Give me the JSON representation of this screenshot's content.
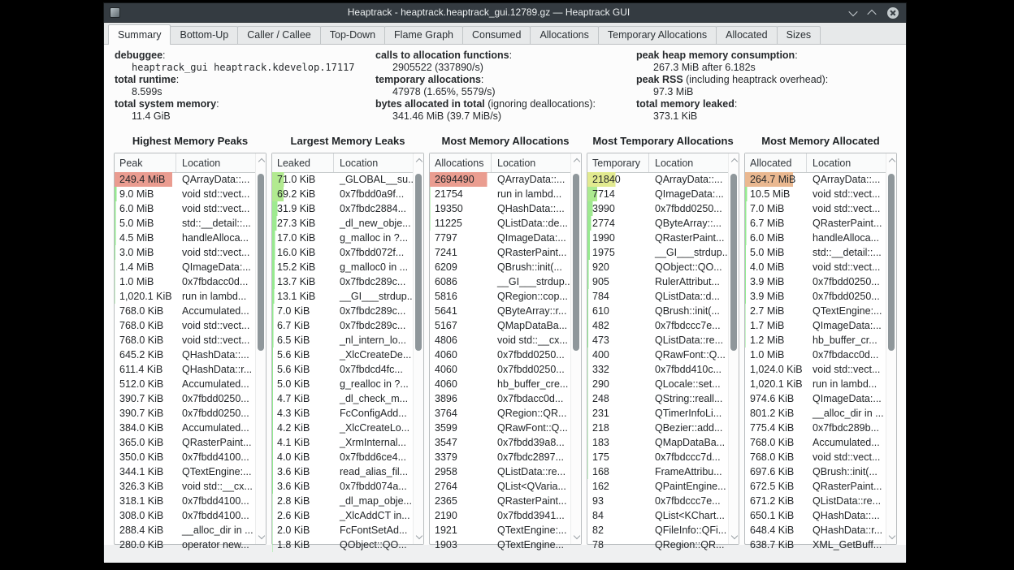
{
  "window": {
    "title": "Heaptrack - heaptrack.heaptrack_gui.12789.gz — Heaptrack GUI",
    "control_icons": [
      "chevron-down-icon",
      "chevron-up-icon",
      "close-circle-icon"
    ]
  },
  "active_tab": "Summary",
  "tabs": [
    "Summary",
    "Bottom-Up",
    "Caller / Callee",
    "Top-Down",
    "Flame Graph",
    "Consumed",
    "Allocations",
    "Temporary Allocations",
    "Allocated",
    "Sizes"
  ],
  "summary": {
    "columns": [
      [
        {
          "label": "debuggee",
          "rest": ":",
          "value": "heaptrack_gui heaptrack.kdevelop.17117",
          "mono": true
        },
        {
          "label": "total runtime",
          "rest": ":",
          "value": "8.599s"
        },
        {
          "label": "total system memory",
          "rest": ":",
          "value": "11.4 GiB"
        }
      ],
      [
        {
          "label": "calls to allocation functions",
          "rest": ":",
          "value": "2905522 (337890/s)"
        },
        {
          "label": "temporary allocations",
          "rest": ":",
          "value": "47978 (1.65%, 5579/s)"
        },
        {
          "label": "bytes allocated in total",
          "rest": " (ignoring deallocations):",
          "value": "341.46 MiB (39.7 MiB/s)"
        }
      ],
      [
        {
          "label": "peak heap memory consumption",
          "rest": ":",
          "value": "267.3 MiB after 6.182s"
        },
        {
          "label": "peak RSS",
          "rest": " (including heaptrack overhead):",
          "value": "97.3 MiB"
        },
        {
          "label": "total memory leaked",
          "rest": ":",
          "value": "373.1 KiB"
        }
      ]
    ]
  },
  "colors": {
    "peak_highlight": "#ea9e92",
    "allocations_highlight": "#ea9e92",
    "temporary_highlight": "#f1ef9e",
    "allocated_highlight": "#f5c289",
    "leak_highlight": "#ddf0d2",
    "titlebar": "#343b41"
  },
  "tables": [
    {
      "title": "Highest Memory Peaks",
      "name": "highest-memory-peaks",
      "columns": [
        "Peak",
        "Location"
      ],
      "rows": [
        [
          "249.4 MiB",
          "QArrayData::...",
          0.933
        ],
        [
          "9.0 MiB",
          "void std::vect...",
          0.034
        ],
        [
          "6.0 MiB",
          "void std::vect...",
          0.022
        ],
        [
          "5.0 MiB",
          "std::__detail::...",
          0.019
        ],
        [
          "4.5 MiB",
          "handleAlloca...",
          0.017
        ],
        [
          "3.0 MiB",
          "void std::vect...",
          0.011
        ],
        [
          "1.4 MiB",
          "QImageData:...",
          0.005
        ],
        [
          "1.0 MiB",
          "0x7fbdacc0d...",
          0.004
        ],
        [
          "1,020.1 KiB",
          "run in lambd...",
          0.004
        ],
        [
          "768.0 KiB",
          "Accumulated...",
          0.003
        ],
        [
          "768.0 KiB",
          "void std::vect...",
          0.003
        ],
        [
          "768.0 KiB",
          "void std::vect...",
          0.003
        ],
        [
          "645.2 KiB",
          "QHashData::...",
          0.002
        ],
        [
          "611.4 KiB",
          "QHashData::r...",
          0.002
        ],
        [
          "512.0 KiB",
          "Accumulated...",
          0.002
        ],
        [
          "390.7 KiB",
          "0x7fbdd0250...",
          0.001
        ],
        [
          "390.7 KiB",
          "0x7fbdd0250...",
          0.001
        ],
        [
          "384.0 KiB",
          "Accumulated...",
          0.001
        ],
        [
          "365.0 KiB",
          "QRasterPaint...",
          0.001
        ],
        [
          "350.0 KiB",
          "0x7fbdd4100...",
          0.001
        ],
        [
          "344.1 KiB",
          "QTextEngine:...",
          0.001
        ],
        [
          "326.3 KiB",
          "void std::__cx...",
          0.001
        ],
        [
          "318.1 KiB",
          "0x7fbdd4100...",
          0.001
        ],
        [
          "308.0 KiB",
          "0x7fbdd4100...",
          0.001
        ],
        [
          "288.4 KiB",
          "__alloc_dir in ...",
          0.001
        ],
        [
          "280.0 KiB",
          "operator new...",
          0.001
        ]
      ]
    },
    {
      "title": "Largest Memory Leaks",
      "name": "largest-memory-leaks",
      "columns": [
        "Leaked",
        "Location"
      ],
      "rows": [
        [
          "71.0 KiB",
          "_GLOBAL__su...",
          0.19
        ],
        [
          "69.2 KiB",
          "0x7fbdd0a9f...",
          0.185
        ],
        [
          "31.9 KiB",
          "0x7fbdc2884...",
          0.086
        ],
        [
          "27.3 KiB",
          "_dl_new_obje...",
          0.073
        ],
        [
          "17.0 KiB",
          "g_malloc in ?...",
          0.046
        ],
        [
          "16.0 KiB",
          "0x7fbdd072f...",
          0.043
        ],
        [
          "15.2 KiB",
          "g_malloc0 in ...",
          0.041
        ],
        [
          "13.7 KiB",
          "0x7fbdc289c...",
          0.037
        ],
        [
          "13.1 KiB",
          "__GI___strdup...",
          0.035
        ],
        [
          "7.0 KiB",
          "0x7fbdc289c...",
          0.019
        ],
        [
          "6.7 KiB",
          "0x7fbdc289c...",
          0.018
        ],
        [
          "6.5 KiB",
          "_nl_intern_lo...",
          0.017
        ],
        [
          "5.6 KiB",
          "_XlcCreateDe...",
          0.015
        ],
        [
          "5.6 KiB",
          "0x7fbdcd4fc...",
          0.015
        ],
        [
          "5.0 KiB",
          "g_realloc in ?...",
          0.013
        ],
        [
          "4.7 KiB",
          "_dl_check_m...",
          0.013
        ],
        [
          "4.3 KiB",
          "FcConfigAdd...",
          0.012
        ],
        [
          "4.2 KiB",
          "_XlcCreateLo...",
          0.011
        ],
        [
          "4.1 KiB",
          "_XrmInternal...",
          0.011
        ],
        [
          "4.0 KiB",
          "0x7fbdd6ce4...",
          0.011
        ],
        [
          "3.6 KiB",
          "read_alias_fil...",
          0.01
        ],
        [
          "3.6 KiB",
          "0x7fbdd074a...",
          0.01
        ],
        [
          "2.8 KiB",
          "_dl_map_obje...",
          0.008
        ],
        [
          "2.6 KiB",
          "_XlcAddCT in...",
          0.007
        ],
        [
          "2.0 KiB",
          "FcFontSetAd...",
          0.005
        ],
        [
          "1.8 KiB",
          "QObject::QO...",
          0.005
        ]
      ]
    },
    {
      "title": "Most Memory Allocations",
      "name": "most-memory-allocations",
      "columns": [
        "Allocations",
        "Location"
      ],
      "rows": [
        [
          "2694490",
          "QArrayData::...",
          0.927
        ],
        [
          "21754",
          "run in lambd...",
          0.007
        ],
        [
          "19350",
          "QHashData::...",
          0.007
        ],
        [
          "11225",
          "QListData::de...",
          0.004
        ],
        [
          "7797",
          "QImageData:...",
          0.003
        ],
        [
          "7241",
          "QRasterPaint...",
          0.002
        ],
        [
          "6209",
          "QBrush::init(...",
          0.002
        ],
        [
          "6086",
          "__GI___strdup...",
          0.002
        ],
        [
          "5816",
          "QRegion::cop...",
          0.002
        ],
        [
          "5641",
          "QByteArray::r...",
          0.002
        ],
        [
          "5167",
          "QMapDataBa...",
          0.002
        ],
        [
          "4806",
          "void std::__cx...",
          0.002
        ],
        [
          "4060",
          "0x7fbdd0250...",
          0.001
        ],
        [
          "4060",
          "0x7fbdd0250...",
          0.001
        ],
        [
          "4060",
          "hb_buffer_cre...",
          0.001
        ],
        [
          "3896",
          "0x7fbdacc0d...",
          0.001
        ],
        [
          "3764",
          "QRegion::QR...",
          0.001
        ],
        [
          "3599",
          "QRawFont::Q...",
          0.001
        ],
        [
          "3547",
          "0x7fbdd39a8...",
          0.001
        ],
        [
          "3379",
          "0x7fbdc2897...",
          0.001
        ],
        [
          "2958",
          "QListData::re...",
          0.001
        ],
        [
          "2764",
          "QList<QVaria...",
          0.001
        ],
        [
          "2365",
          "QRasterPaint...",
          0.001
        ],
        [
          "2190",
          "0x7fbdd3941...",
          0.001
        ],
        [
          "1921",
          "QTextEngine:...",
          0.001
        ],
        [
          "1903",
          "QTextEngine...",
          0.001
        ]
      ]
    },
    {
      "title": "Most Temporary Allocations",
      "name": "most-temporary-allocations",
      "columns": [
        "Temporary",
        "Location"
      ],
      "rows": [
        [
          "21840",
          "QArrayData::...",
          0.455
        ],
        [
          "7714",
          "QImageData:...",
          0.161
        ],
        [
          "3990",
          "0x7fbdd0250...",
          0.083
        ],
        [
          "2774",
          "QByteArray::...",
          0.058
        ],
        [
          "1990",
          "QRasterPaint...",
          0.041
        ],
        [
          "1975",
          "__GI___strdup...",
          0.041
        ],
        [
          "920",
          "QObject::QO...",
          0.019
        ],
        [
          "905",
          "RulerAttribut...",
          0.019
        ],
        [
          "784",
          "QListData::d...",
          0.016
        ],
        [
          "610",
          "QBrush::init(...",
          0.013
        ],
        [
          "482",
          "0x7fbdccc7e...",
          0.01
        ],
        [
          "473",
          "QListData::re...",
          0.01
        ],
        [
          "400",
          "QRawFont::Q...",
          0.008
        ],
        [
          "332",
          "0x7fbdd410c...",
          0.007
        ],
        [
          "290",
          "QLocale::set...",
          0.006
        ],
        [
          "248",
          "QString::reall...",
          0.005
        ],
        [
          "231",
          "QTimerInfoLi...",
          0.005
        ],
        [
          "218",
          "QBezier::add...",
          0.005
        ],
        [
          "183",
          "QMapDataBa...",
          0.004
        ],
        [
          "175",
          "0x7fbdccc7d...",
          0.004
        ],
        [
          "168",
          "FrameAttribu...",
          0.004
        ],
        [
          "162",
          "QPaintEngine...",
          0.003
        ],
        [
          "93",
          "0x7fbdccc7e...",
          0.002
        ],
        [
          "84",
          "QList<KChart...",
          0.002
        ],
        [
          "82",
          "QFileInfo::QFi...",
          0.002
        ],
        [
          "78",
          "QRegion::QR...",
          0.002
        ]
      ]
    },
    {
      "title": "Most Memory Allocated",
      "name": "most-memory-allocated",
      "columns": [
        "Allocated",
        "Location"
      ],
      "rows": [
        [
          "264.7 MiB",
          "QArrayData::...",
          0.775
        ],
        [
          "10.5 MiB",
          "void std::vect...",
          0.031
        ],
        [
          "7.0 MiB",
          "void std::vect...",
          0.021
        ],
        [
          "6.7 MiB",
          "QRasterPaint...",
          0.02
        ],
        [
          "6.0 MiB",
          "handleAlloca...",
          0.018
        ],
        [
          "5.0 MiB",
          "std::__detail::...",
          0.015
        ],
        [
          "4.0 MiB",
          "void std::vect...",
          0.012
        ],
        [
          "3.9 MiB",
          "0x7fbdd0250...",
          0.011
        ],
        [
          "3.9 MiB",
          "0x7fbdd0250...",
          0.011
        ],
        [
          "2.7 MiB",
          "QTextEngine:...",
          0.008
        ],
        [
          "1.7 MiB",
          "QImageData:...",
          0.005
        ],
        [
          "1.2 MiB",
          "hb_buffer_cr...",
          0.004
        ],
        [
          "1.0 MiB",
          "0x7fbdacc0d...",
          0.003
        ],
        [
          "1,024.0 KiB",
          "void std::vect...",
          0.003
        ],
        [
          "1,020.1 KiB",
          "run in lambd...",
          0.003
        ],
        [
          "974.6 KiB",
          "QImageData:...",
          0.003
        ],
        [
          "801.2 KiB",
          "__alloc_dir in ...",
          0.002
        ],
        [
          "775.4 KiB",
          "0x7fbdc289b...",
          0.002
        ],
        [
          "768.0 KiB",
          "Accumulated...",
          0.002
        ],
        [
          "768.0 KiB",
          "void std::vect...",
          0.002
        ],
        [
          "697.6 KiB",
          "QBrush::init(...",
          0.002
        ],
        [
          "672.5 KiB",
          "QRasterPaint...",
          0.002
        ],
        [
          "671.2 KiB",
          "QListData::re...",
          0.002
        ],
        [
          "650.1 KiB",
          "QHashData::...",
          0.002
        ],
        [
          "648.4 KiB",
          "QHashData::r...",
          0.002
        ],
        [
          "638.7 KiB",
          "XML_GetBuff...",
          0.002
        ]
      ]
    }
  ]
}
